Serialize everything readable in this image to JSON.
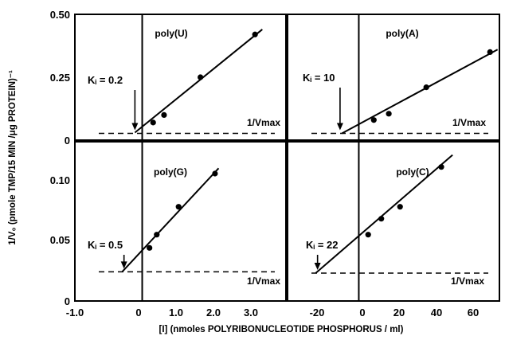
{
  "figure": {
    "ylabel": "1/V₀ (pmole TMP/15 MIN /μg PROTEIN)⁻¹",
    "xlabel": "[I] (nmoles POLYRIBONUCLEOTIDE PHOSPHORUS / ml)"
  },
  "ticks": {
    "top_y": [
      "0.50",
      "0.25",
      "0"
    ],
    "bottom_y": [
      "0.10",
      "0.05",
      "0"
    ],
    "left_x": [
      "-1.0",
      "0",
      "1.0",
      "2.0",
      "3.0"
    ],
    "right_x": [
      "-20",
      "0",
      "20",
      "40",
      "60"
    ]
  },
  "chart_data": [
    {
      "type": "scatter",
      "title": "poly(U)",
      "ki_text": "Kᵢ = 0.2",
      "vmax_text": "1/Vmax",
      "x": [
        0.3,
        0.6,
        1.6,
        3.1
      ],
      "y": [
        0.07,
        0.1,
        0.25,
        0.42
      ],
      "fit": {
        "x_start": -0.2,
        "y_start": 0.03,
        "x_end": 3.3,
        "y_end": 0.44
      },
      "vmax_value": 0.027,
      "ki_value": -0.2,
      "xlim": [
        -1.85,
        3.95
      ],
      "ylim": [
        0,
        0.5
      ]
    },
    {
      "type": "scatter",
      "title": "poly(A)",
      "ki_text": "Kᵢ = 10",
      "vmax_text": "1/Vmax",
      "x": [
        8,
        16,
        36,
        70
      ],
      "y": [
        0.08,
        0.105,
        0.21,
        0.35
      ],
      "fit": {
        "x_start": -9,
        "y_start": 0.027,
        "x_end": 74,
        "y_end": 0.36
      },
      "vmax_value": 0.027,
      "ki_value": -10,
      "xlim": [
        -38,
        75
      ],
      "ylim": [
        0,
        0.5
      ]
    },
    {
      "type": "scatter",
      "title": "poly(G)",
      "ki_text": "Kᵢ = 0.5",
      "vmax_text": "1/Vmax",
      "x": [
        0.2,
        0.4,
        1.0,
        2.0
      ],
      "y": [
        0.04,
        0.05,
        0.071,
        0.096
      ],
      "fit": {
        "x_start": -0.55,
        "y_start": 0.022,
        "x_end": 2.1,
        "y_end": 0.1
      },
      "vmax_value": 0.022,
      "ki_value": -0.5,
      "xlim": [
        -1.85,
        3.95
      ],
      "ylim": [
        0,
        0.12
      ]
    },
    {
      "type": "scatter",
      "title": "poly(C)",
      "ki_text": "Kᵢ = 22",
      "vmax_text": "1/Vmax",
      "x": [
        5,
        12,
        22,
        44
      ],
      "y": [
        0.05,
        0.062,
        0.071,
        0.101
      ],
      "fit": {
        "x_start": -23,
        "y_start": 0.021,
        "x_end": 50,
        "y_end": 0.11
      },
      "vmax_value": 0.021,
      "ki_value": -22,
      "xlim": [
        -38,
        75
      ],
      "ylim": [
        0,
        0.12
      ]
    }
  ]
}
